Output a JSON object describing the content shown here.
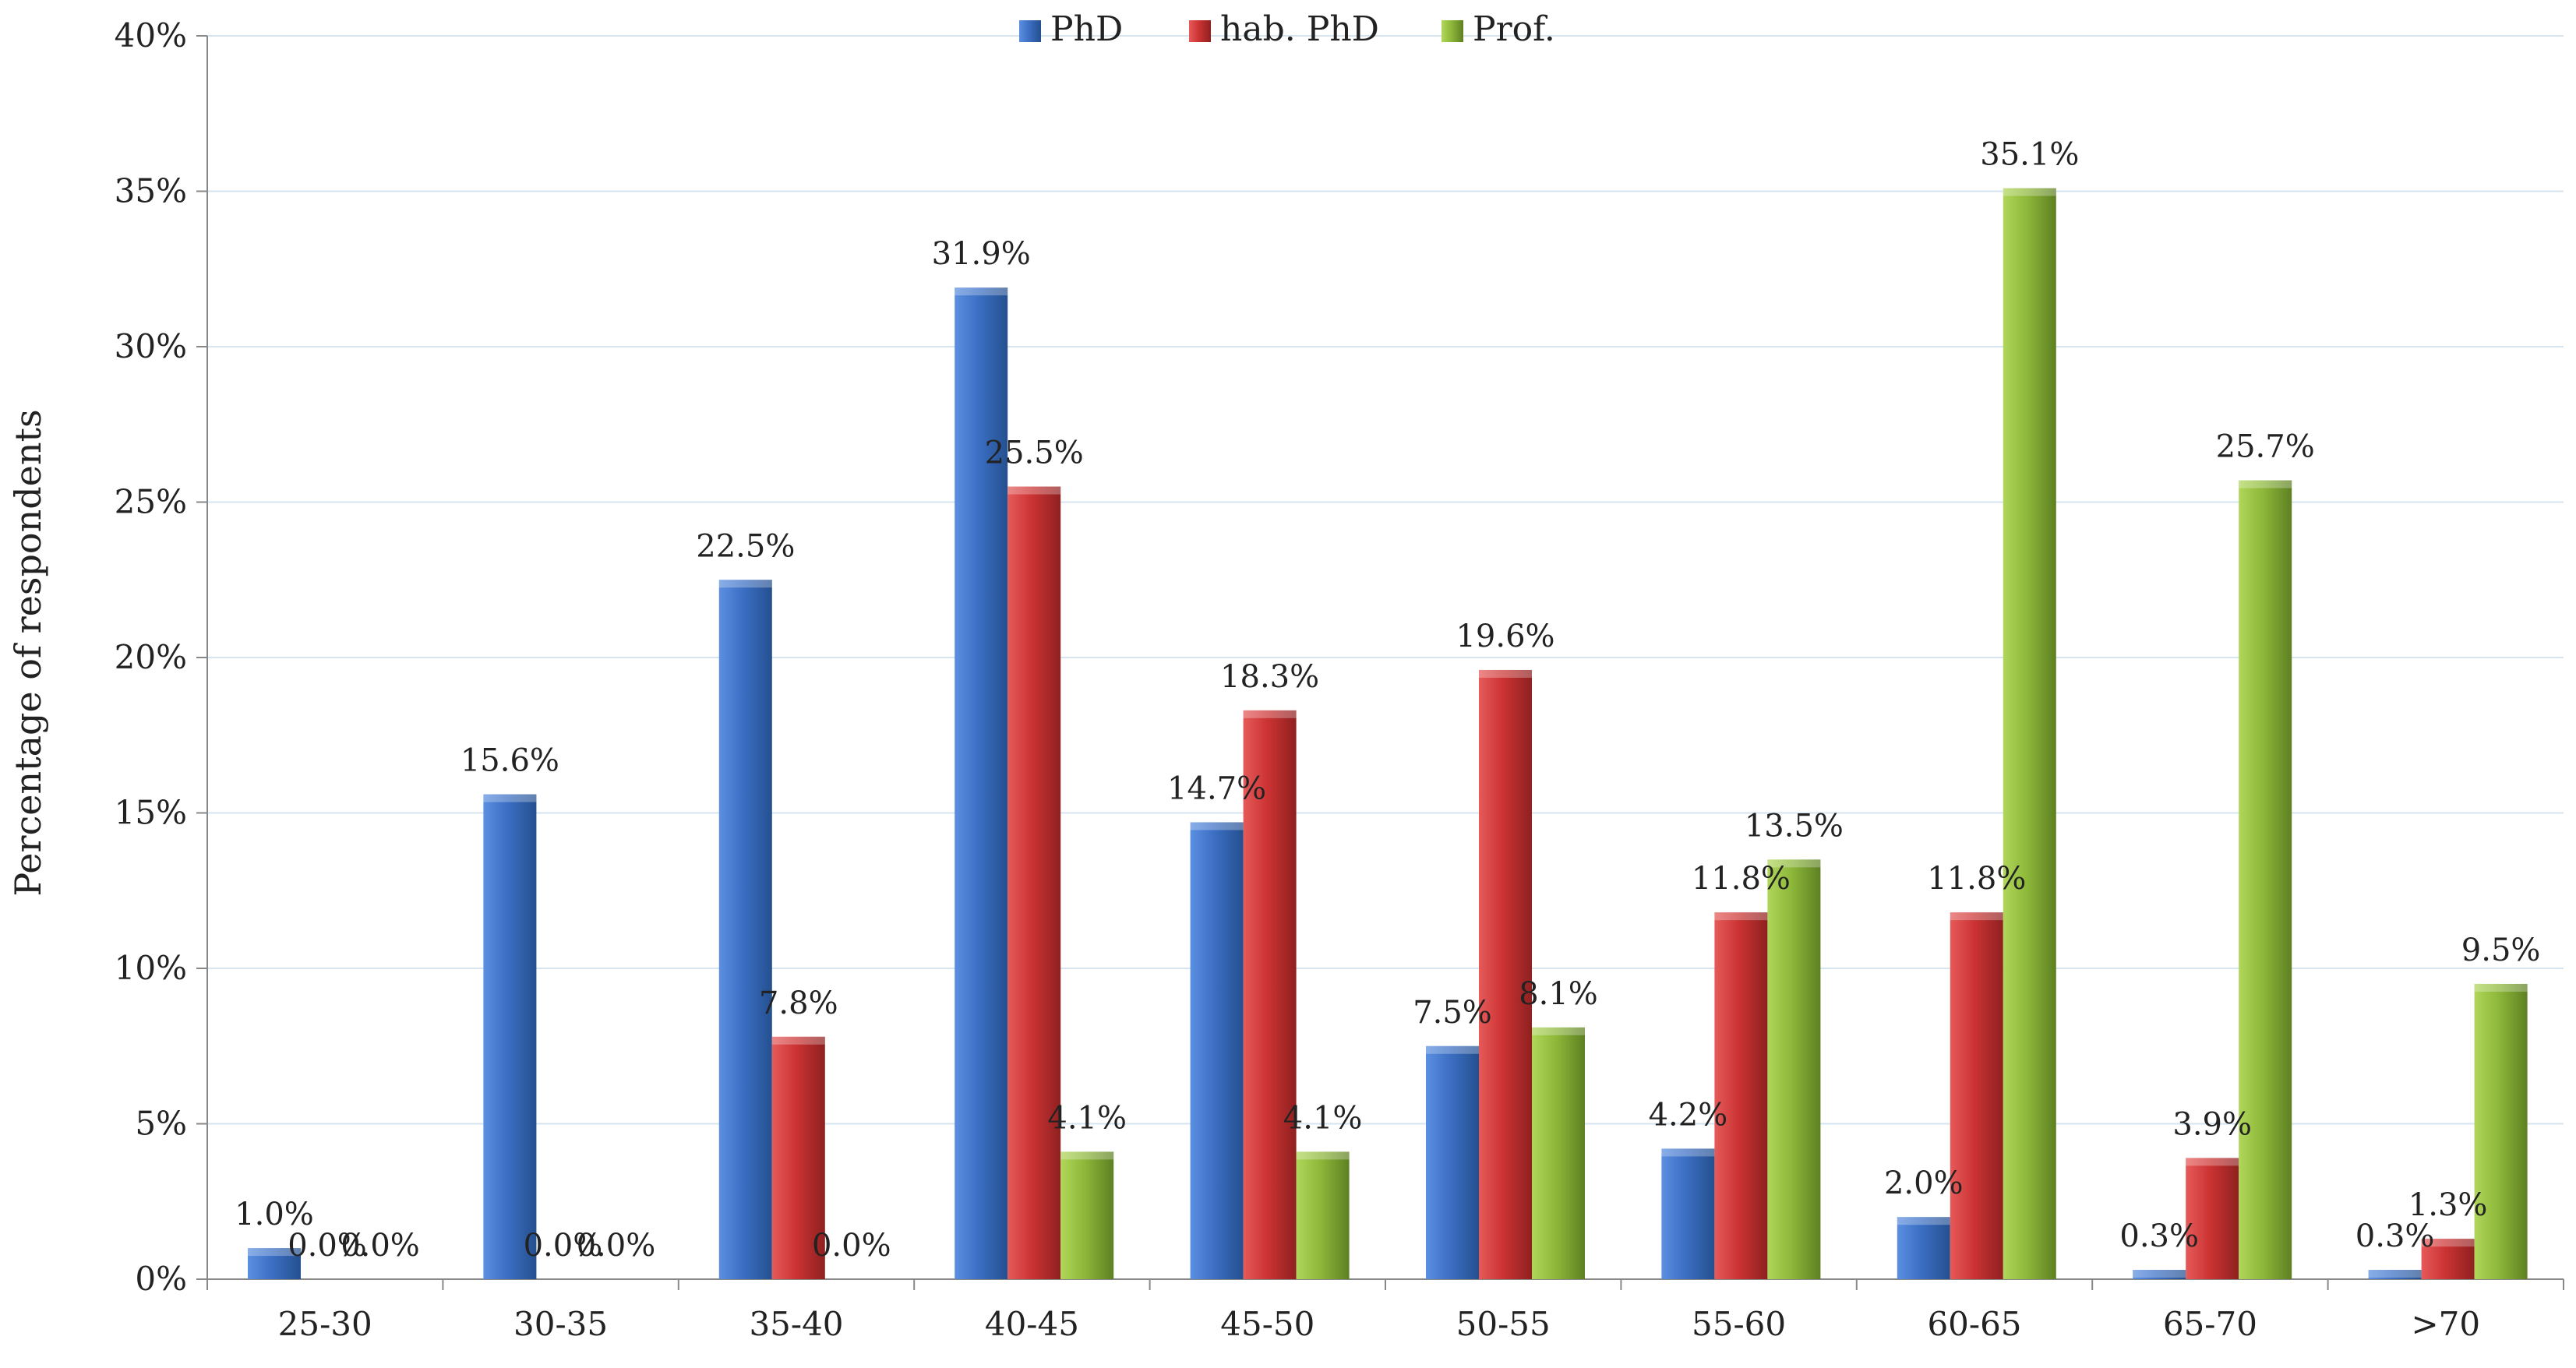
{
  "chart_data": {
    "type": "bar",
    "title": "",
    "xlabel": "",
    "ylabel": "Percentage of respondents",
    "ylim": [
      0,
      40
    ],
    "yticks": [
      0,
      5,
      10,
      15,
      20,
      25,
      30,
      35,
      40
    ],
    "ytick_labels": [
      "0%",
      "5%",
      "10%",
      "15%",
      "20%",
      "25%",
      "30%",
      "35%",
      "40%"
    ],
    "grid": "horizontal",
    "legend_position": "top-center",
    "categories": [
      "25-30",
      "30-35",
      "35-40",
      "40-45",
      "45-50",
      "50-55",
      "55-60",
      "60-65",
      "65-70",
      ">70"
    ],
    "series": [
      {
        "name": "PhD",
        "color": "#3c6fc4",
        "values": [
          1.0,
          15.6,
          22.5,
          31.9,
          14.7,
          7.5,
          4.2,
          2.0,
          0.3,
          0.3
        ],
        "labels": [
          "1.0%",
          "15.6%",
          "22.5%",
          "31.9%",
          "14.7%",
          "7.5%",
          "4.2%",
          "2.0%",
          "0.3%",
          "0.3%"
        ]
      },
      {
        "name": "hab. PhD",
        "color": "#cc3333",
        "values": [
          0.0,
          0.0,
          7.8,
          25.5,
          18.3,
          19.6,
          11.8,
          11.8,
          3.9,
          1.3
        ],
        "labels": [
          "0.0%",
          "0.0%",
          "7.8%",
          "25.5%",
          "18.3%",
          "19.6%",
          "11.8%",
          "11.8%",
          "3.9%",
          "1.3%"
        ]
      },
      {
        "name": "Prof.",
        "color": "#8db83a",
        "values": [
          0.0,
          0.0,
          0.0,
          4.1,
          4.1,
          8.1,
          13.5,
          35.1,
          25.7,
          9.5
        ],
        "labels": [
          "0.0%",
          "0.0%",
          "0.0%",
          "4.1%",
          "4.1%",
          "8.1%",
          "13.5%",
          "35.1%",
          "25.7%",
          "9.5%"
        ]
      }
    ]
  }
}
